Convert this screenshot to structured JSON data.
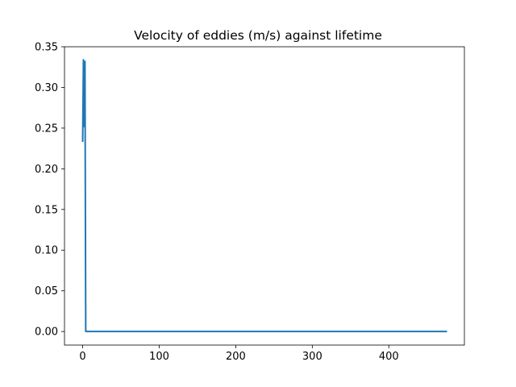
{
  "chart_data": {
    "type": "line",
    "title": "Velocity of eddies (m/s) against lifetime",
    "xlabel": "",
    "ylabel": "",
    "xlim": [
      -23.75,
      498.75
    ],
    "ylim": [
      -0.0167,
      0.35
    ],
    "x_ticks": [
      0,
      100,
      200,
      300,
      400
    ],
    "x_tick_labels": [
      "0",
      "100",
      "200",
      "300",
      "400"
    ],
    "y_ticks": [
      0.0,
      0.05,
      0.1,
      0.15,
      0.2,
      0.25,
      0.3,
      0.35
    ],
    "y_tick_labels": [
      "0.00",
      "0.05",
      "0.10",
      "0.15",
      "0.20",
      "0.25",
      "0.30",
      "0.35"
    ],
    "grid": false,
    "series": [
      {
        "color": "#1f77b4",
        "x": [
          0,
          1,
          2,
          3,
          4,
          475
        ],
        "y": [
          0.234,
          0.334,
          0.252,
          0.332,
          0.0,
          0.0
        ]
      }
    ]
  }
}
